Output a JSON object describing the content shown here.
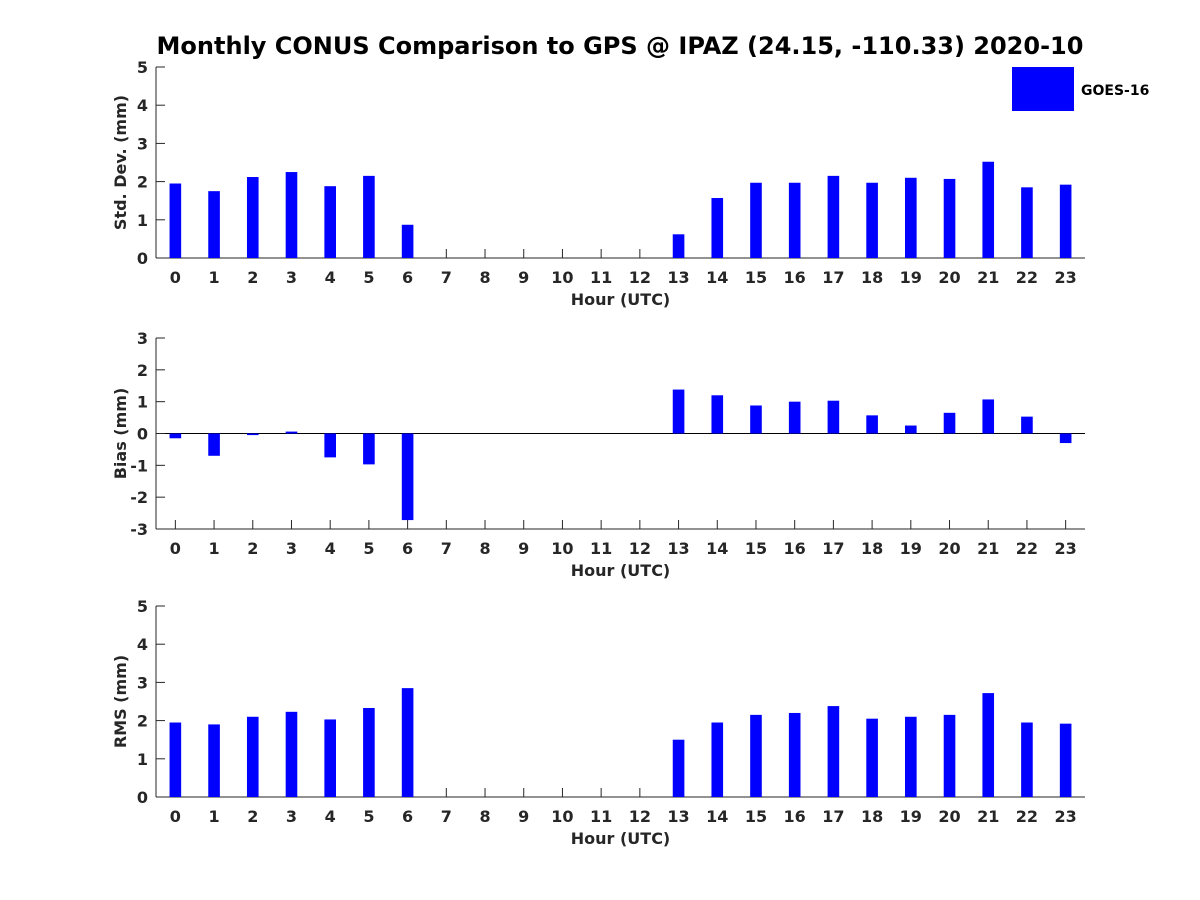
{
  "figure": {
    "title": "Monthly CONUS Comparison to GPS @ IPAZ (24.15, -110.33) 2020-10"
  },
  "legend": {
    "label": "GOES-16",
    "color": "#0000ff",
    "placement": "top-right"
  },
  "chart_data": [
    {
      "type": "bar",
      "ylabel": "Std. Dev. (mm)",
      "xlabel": "Hour (UTC)",
      "ylim": [
        0,
        5
      ],
      "yticks": [
        0,
        1,
        2,
        3,
        4,
        5
      ],
      "categories": [
        0,
        1,
        2,
        3,
        4,
        5,
        6,
        7,
        8,
        9,
        10,
        11,
        12,
        13,
        14,
        15,
        16,
        17,
        18,
        19,
        20,
        21,
        22,
        23
      ],
      "series": [
        {
          "name": "GOES-16",
          "color": "#0000ff",
          "values": [
            1.95,
            1.75,
            2.12,
            2.25,
            1.88,
            2.15,
            0.87,
            null,
            null,
            null,
            null,
            null,
            null,
            0.62,
            1.57,
            1.97,
            1.97,
            2.15,
            1.97,
            2.1,
            2.07,
            2.52,
            1.85,
            1.92
          ]
        }
      ]
    },
    {
      "type": "bar",
      "ylabel": "Bias (mm)",
      "xlabel": "Hour (UTC)",
      "ylim": [
        -3,
        3
      ],
      "yticks": [
        -3,
        -2,
        -1,
        0,
        1,
        2,
        3
      ],
      "categories": [
        0,
        1,
        2,
        3,
        4,
        5,
        6,
        7,
        8,
        9,
        10,
        11,
        12,
        13,
        14,
        15,
        16,
        17,
        18,
        19,
        20,
        21,
        22,
        23
      ],
      "series": [
        {
          "name": "GOES-16",
          "color": "#0000ff",
          "values": [
            -0.15,
            -0.7,
            -0.05,
            0.06,
            -0.75,
            -0.97,
            -2.72,
            null,
            null,
            null,
            null,
            null,
            null,
            1.38,
            1.2,
            0.88,
            1.0,
            1.03,
            0.57,
            0.25,
            0.65,
            1.07,
            0.53,
            -0.3
          ]
        }
      ]
    },
    {
      "type": "bar",
      "ylabel": "RMS (mm)",
      "xlabel": "Hour (UTC)",
      "ylim": [
        0,
        5
      ],
      "yticks": [
        0,
        1,
        2,
        3,
        4,
        5
      ],
      "categories": [
        0,
        1,
        2,
        3,
        4,
        5,
        6,
        7,
        8,
        9,
        10,
        11,
        12,
        13,
        14,
        15,
        16,
        17,
        18,
        19,
        20,
        21,
        22,
        23
      ],
      "series": [
        {
          "name": "GOES-16",
          "color": "#0000ff",
          "values": [
            1.95,
            1.9,
            2.1,
            2.23,
            2.03,
            2.33,
            2.85,
            null,
            null,
            null,
            null,
            null,
            null,
            1.5,
            1.95,
            2.15,
            2.2,
            2.38,
            2.05,
            2.1,
            2.15,
            2.72,
            1.95,
            1.92
          ]
        }
      ]
    }
  ]
}
